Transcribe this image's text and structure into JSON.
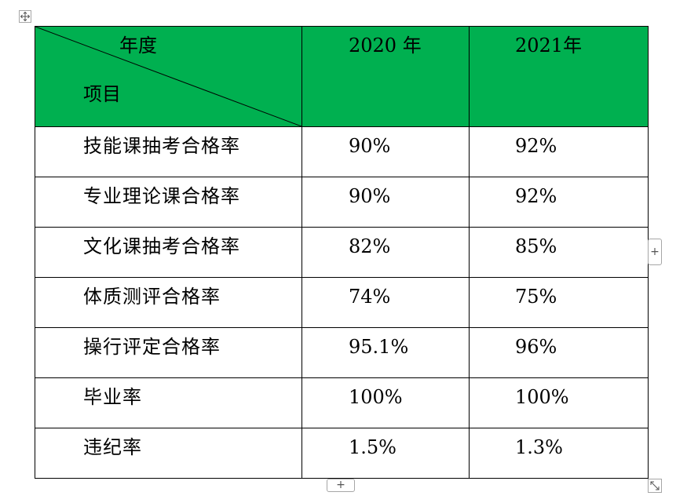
{
  "table": {
    "header": {
      "diagonal_top_label": "年度",
      "diagonal_bottom_label": "项目",
      "columns": [
        "2020 年",
        "2021年"
      ]
    },
    "rows": [
      {
        "item": "技能课抽考合格率",
        "y2020": "90%",
        "y2021": "92%"
      },
      {
        "item": "专业理论课合格率",
        "y2020": "90%",
        "y2021": "92%"
      },
      {
        "item": "文化课抽考合格率",
        "y2020": "82%",
        "y2021": "85%"
      },
      {
        "item": "体质测评合格率",
        "y2020": "74%",
        "y2021": "75%"
      },
      {
        "item": "操行评定合格率",
        "y2020": "95.1%",
        "y2021": "96%"
      },
      {
        "item": "毕业率",
        "y2020": "100%",
        "y2021": "100%"
      },
      {
        "item": "违纪率",
        "y2020": "1.5%",
        "y2021": "1.3%"
      }
    ],
    "header_color": "#00b050"
  },
  "handles": {
    "add_row_icon": "plus-icon",
    "add_column_icon": "plus-icon",
    "move_icon": "move-icon",
    "resize_icon": "resize-icon",
    "add_symbol": "+"
  }
}
